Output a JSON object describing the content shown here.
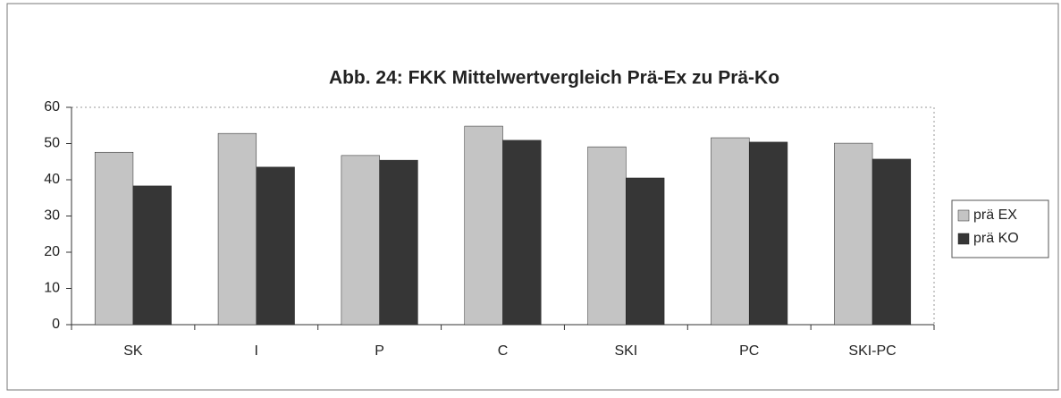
{
  "chart_data": {
    "type": "bar",
    "title": "Abb. 24: FKK Mittelwertvergleich Prä-Ex zu Prä-Ko",
    "categories": [
      "SK",
      "I",
      "P",
      "C",
      "SKI",
      "PC",
      "SKI-PC"
    ],
    "series": [
      {
        "name": "prä EX",
        "color": "#c4c4c4",
        "values": [
          47.6,
          52.8,
          46.7,
          54.8,
          49.1,
          51.6,
          50.1
        ]
      },
      {
        "name": "prä KO",
        "color": "#363636",
        "values": [
          38.3,
          43.5,
          45.4,
          50.9,
          40.5,
          50.4,
          45.7
        ]
      }
    ],
    "ylim": [
      0,
      60
    ],
    "yticks": [
      0,
      10,
      20,
      30,
      40,
      50,
      60
    ],
    "grid": false,
    "legend": "right"
  }
}
